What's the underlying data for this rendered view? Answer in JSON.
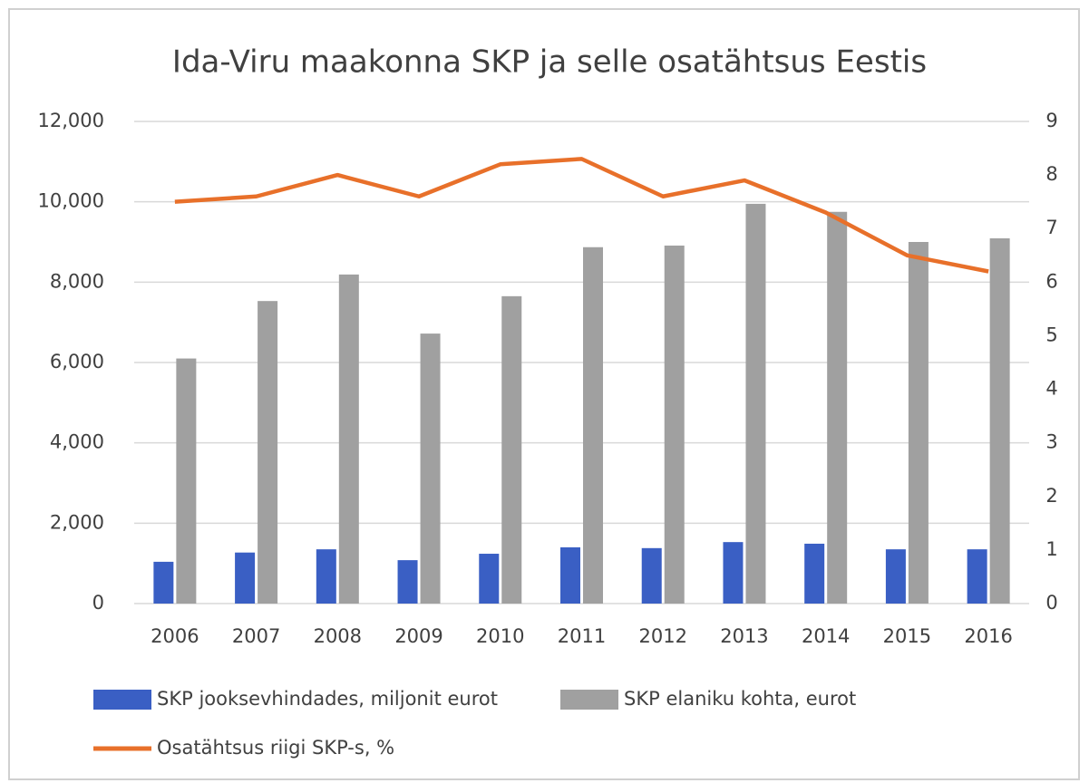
{
  "chart_data": {
    "type": "bar",
    "title": "Ida-Viru maakonna SKP ja selle osatähtsus Eestis",
    "categories": [
      "2006",
      "2007",
      "2008",
      "2009",
      "2010",
      "2011",
      "2012",
      "2013",
      "2014",
      "2015",
      "2016"
    ],
    "series": [
      {
        "name": "SKP jooksevhindades, miljonit eurot",
        "type": "bar",
        "color": "#3a5fc4",
        "values": [
          1040,
          1270,
          1350,
          1080,
          1240,
          1400,
          1380,
          1530,
          1490,
          1350,
          1350
        ]
      },
      {
        "name": "SKP elaniku kohta, eurot",
        "type": "bar",
        "color": "#a0a0a0",
        "values": [
          6100,
          7530,
          8190,
          6720,
          7650,
          8870,
          8910,
          9950,
          9750,
          9000,
          9090
        ]
      },
      {
        "name": "Osatähtsus riigi SKP-s, %",
        "type": "line",
        "axis": "y2",
        "color": "#e8702a",
        "values": [
          7.5,
          7.6,
          8.0,
          7.6,
          8.2,
          8.3,
          7.6,
          7.9,
          7.3,
          6.5,
          6.2
        ]
      }
    ],
    "ylim": [
      0,
      12000
    ],
    "yticks": [
      0,
      {
        "value": 2000,
        "label": "2,000"
      },
      {
        "value": 4000,
        "label": "4,000"
      },
      {
        "value": 6000,
        "label": "6,000"
      },
      {
        "value": 8000,
        "label": "8,000"
      },
      {
        "value": 10000,
        "label": "10,000"
      },
      {
        "value": 12000,
        "label": "12,000"
      }
    ],
    "y2lim": [
      0,
      9
    ],
    "y2ticks": [
      0,
      1,
      2,
      3,
      4,
      5,
      6,
      7,
      8,
      9
    ],
    "grid": true,
    "legend": "bottom"
  }
}
